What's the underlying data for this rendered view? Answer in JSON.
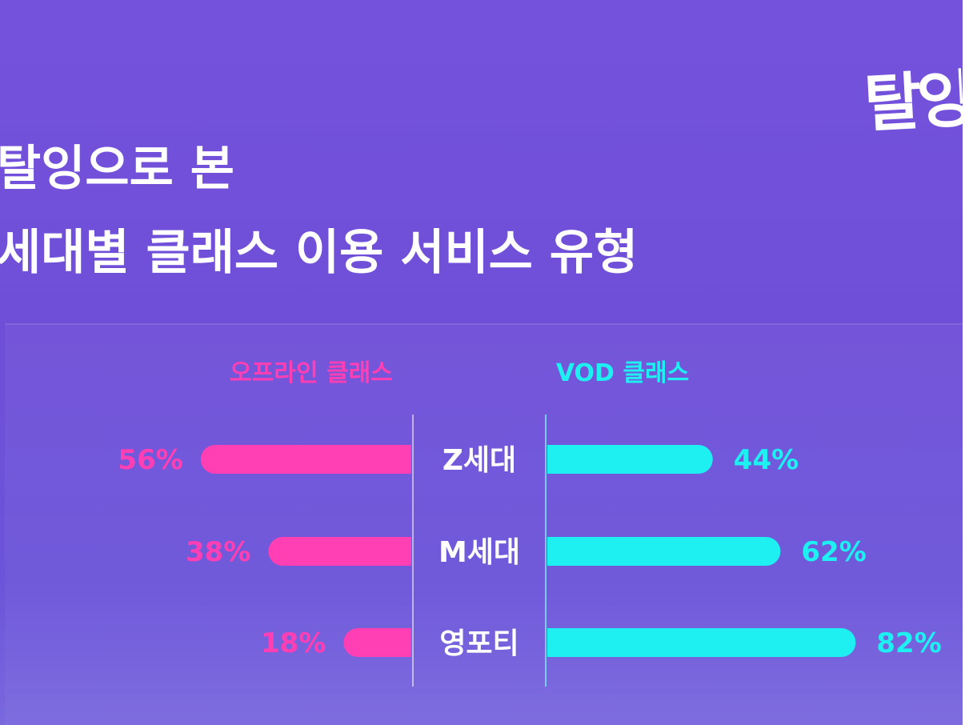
{
  "brand": {
    "logo_text": "탈잉"
  },
  "header": {
    "title_line1": "탈잉으로 본",
    "title_line2": "세대별 클래스 이용 서비스 유형"
  },
  "colors": {
    "background": "#7552dc",
    "offline": "#ff3fb3",
    "vod": "#1ef0f2",
    "text": "#ffffff"
  },
  "chart_data": {
    "type": "bar",
    "layout": "butterfly",
    "title": "탈잉으로 본 세대별 클래스 이용 서비스 유형",
    "categories": [
      "Z세대",
      "M세대",
      "영포티"
    ],
    "series": [
      {
        "name": "오프라인 클래스",
        "values": [
          56,
          38,
          18
        ],
        "labels": [
          "56%",
          "38%",
          "18%"
        ],
        "color": "#ff3fb3",
        "side": "left"
      },
      {
        "name": "VOD 클래스",
        "values": [
          44,
          62,
          82
        ],
        "labels": [
          "44%",
          "62%",
          "82%"
        ],
        "color": "#1ef0f2",
        "side": "right"
      }
    ],
    "unit": "%",
    "xlim": [
      0,
      100
    ],
    "grid": false,
    "legend": "top"
  }
}
